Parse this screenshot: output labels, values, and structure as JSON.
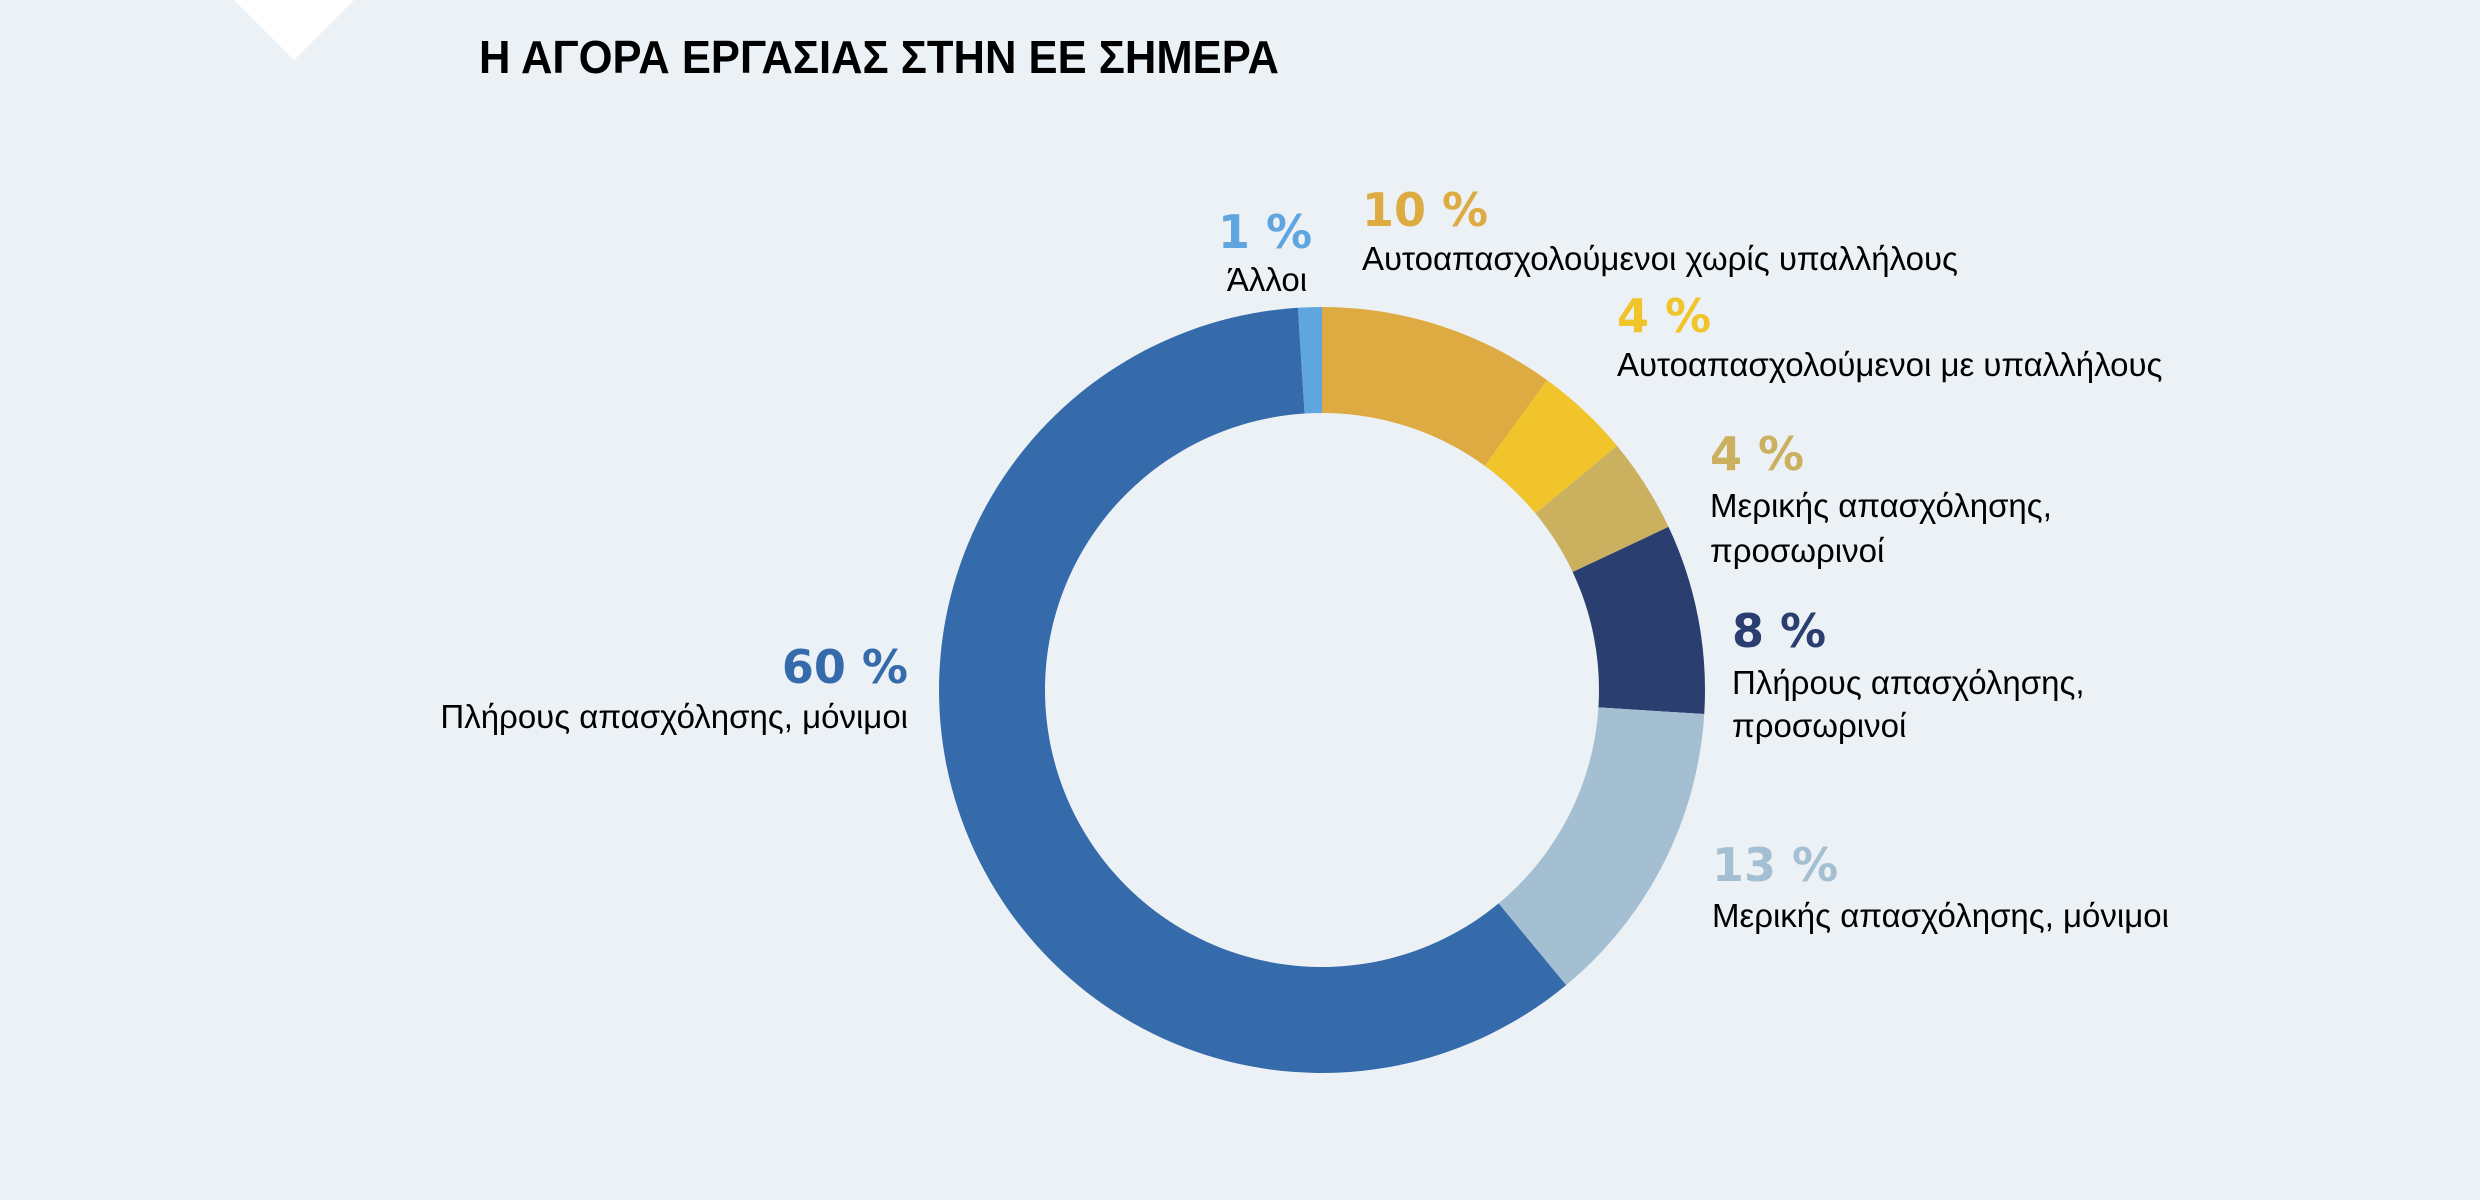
{
  "colors": {
    "background": "#ecf1f6",
    "decoration": "#ffffff"
  },
  "chart_data": {
    "type": "pie",
    "variant": "donut",
    "title": "Η ΑΓΟΡΑ ΕΡΓΑΣΙΑΣ ΣΤΗΝ ΕΕ ΣΗΜΕΡΑ",
    "start": "top",
    "direction": "clockwise",
    "slices": [
      {
        "label": "Αυτοαπασχολούμενοι χωρίς υπαλλήλους",
        "value": 10,
        "value_label": "10 %",
        "color": "#ddab42"
      },
      {
        "label": "Αυτοαπασχολούμενοι με υπαλλήλους",
        "value": 4,
        "value_label": "4 %",
        "color": "#f0c42a"
      },
      {
        "label_lines": [
          "Μερικής απασχόλησης,",
          "προσωρινοί"
        ],
        "value": 4,
        "value_label": "4 %",
        "color": "#cbb060"
      },
      {
        "label_lines": [
          "Πλήρους απασχόλησης,",
          "προσωρινοί"
        ],
        "value": 8,
        "value_label": "8 %",
        "color": "#2a3f70"
      },
      {
        "label": "Μερικής απασχόλησης, μόνιμοι",
        "value": 13,
        "value_label": "13 %",
        "color": "#a4bfd1"
      },
      {
        "label": "Πλήρους απασχόλησης, μόνιμοι",
        "value": 60,
        "value_label": "60 %",
        "color": "#356bab"
      },
      {
        "label": "Άλλοι",
        "value": 1,
        "value_label": "1 %",
        "color": "#5fa5e0"
      }
    ]
  }
}
